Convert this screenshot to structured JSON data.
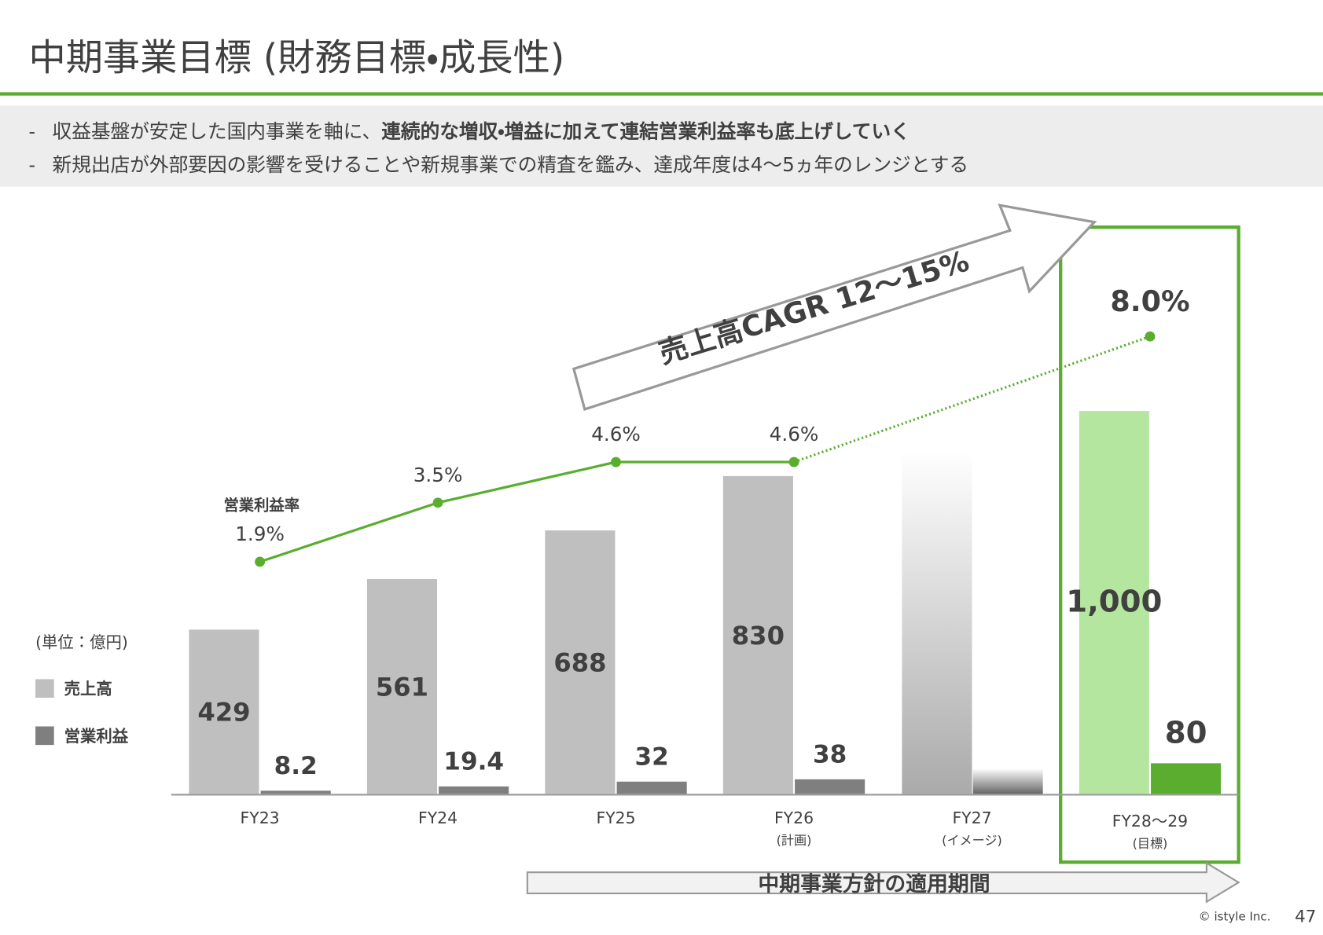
{
  "header": {
    "title": "中期事業目標 (財務目標・成長性)"
  },
  "bullets": [
    {
      "marker": "-",
      "segments": [
        {
          "text": "収益基盤が安定した国内事業を軸に、",
          "bold": false
        },
        {
          "text": "連続的な増収・増益に加えて連結営業利益率も底上げしていく",
          "bold": true
        }
      ]
    },
    {
      "marker": "-",
      "segments": [
        {
          "text": "新規出店が外部要因の影響を受けることや新規事業での精査を鑑み、達成年度は4～5ヵ年のレンジとする",
          "bold": false
        }
      ]
    }
  ],
  "chart_data": {
    "type": "bar",
    "unit_label": "(単位：億円)",
    "categories": [
      "FY23",
      "FY24",
      "FY25",
      "FY26",
      "FY27",
      "FY28～29"
    ],
    "category_notes": [
      null,
      null,
      null,
      "(計画)",
      "(イメージ)",
      "(目標)"
    ],
    "series": [
      {
        "name": "売上高",
        "color": "#bfbfbf",
        "highlight_color": "#b5e6a0",
        "values": [
          429,
          561,
          688,
          830,
          null,
          1000
        ],
        "value_labels": [
          "429",
          "561",
          "688",
          "830",
          null,
          "1,000"
        ]
      },
      {
        "name": "営業利益",
        "color": "#7f7f7f",
        "highlight_color": "#5aad2f",
        "values": [
          8.2,
          19.4,
          32,
          38,
          null,
          80
        ]
      },
      {
        "name": "営業利益率",
        "type": "line",
        "axis": "y2",
        "color": "#5aad2f",
        "values": [
          1.9,
          3.5,
          4.6,
          4.6,
          null,
          8.0
        ],
        "value_labels": [
          "1.9%",
          "3.5%",
          "4.6%",
          "4.6%",
          null,
          "8.0%"
        ]
      }
    ],
    "annotations": {
      "cagr": "売上高CAGR 12～15%",
      "period": "中期事業方針の適用期間"
    }
  },
  "footer": {
    "copyright": "© istyle Inc.",
    "page": "47"
  }
}
